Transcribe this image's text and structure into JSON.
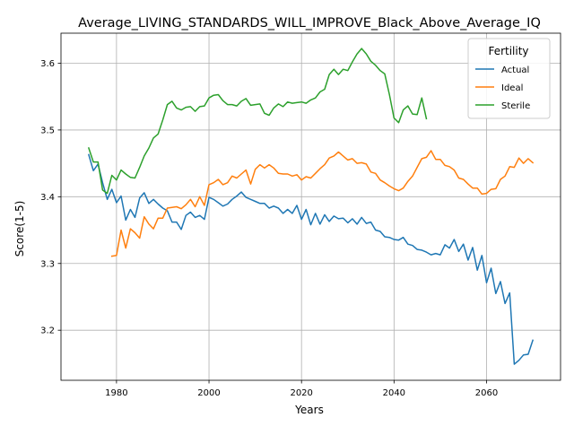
{
  "chart_data": {
    "type": "line",
    "title": "Average_LIVING_STANDARDS_WILL_IMPROVE_Black_Above_Average_IQ",
    "xlabel": "Years",
    "ylabel": "Score(1-5)",
    "xlim": [
      1968,
      2076
    ],
    "ylim": [
      3.125,
      3.645
    ],
    "xticks": [
      1980,
      2000,
      2020,
      2040,
      2060
    ],
    "yticks": [
      3.2,
      3.3,
      3.4,
      3.5,
      3.6
    ],
    "grid": true,
    "legend": {
      "title": "Fertility",
      "placement": "top-right"
    },
    "series": [
      {
        "name": "Actual",
        "color": "#1f77b4",
        "x": [
          1974,
          1975,
          1976,
          1977,
          1978,
          1979,
          1980,
          1981,
          1982,
          1983,
          1984,
          1985,
          1986,
          1987,
          1988,
          1989,
          1990,
          1991,
          1992,
          1993,
          1994,
          1995,
          1996,
          1997,
          1998,
          1999,
          2000,
          2001,
          2002,
          2003,
          2004,
          2005,
          2006,
          2007,
          2008,
          2009,
          2010,
          2011,
          2012,
          2013,
          2014,
          2015,
          2016,
          2017,
          2018,
          2019,
          2020,
          2021,
          2022,
          2023,
          2024,
          2025,
          2026,
          2027,
          2028,
          2029,
          2030,
          2031,
          2032,
          2033,
          2034,
          2035,
          2036,
          2037,
          2038,
          2039,
          2040,
          2041,
          2042,
          2043,
          2044,
          2045,
          2046,
          2047,
          2048,
          2049,
          2050,
          2051,
          2052,
          2053,
          2054,
          2055,
          2056,
          2057,
          2058,
          2059,
          2060,
          2061,
          2062,
          2063,
          2064,
          2065,
          2066,
          2067,
          2068,
          2069,
          2070
        ],
        "values": [
          3.463,
          3.439,
          3.449,
          3.421,
          3.396,
          3.411,
          3.391,
          3.401,
          3.365,
          3.381,
          3.369,
          3.398,
          3.406,
          3.39,
          3.396,
          3.389,
          3.383,
          3.379,
          3.362,
          3.362,
          3.351,
          3.372,
          3.377,
          3.369,
          3.372,
          3.366,
          3.399,
          3.396,
          3.391,
          3.386,
          3.389,
          3.396,
          3.401,
          3.407,
          3.399,
          3.396,
          3.393,
          3.39,
          3.39,
          3.383,
          3.386,
          3.383,
          3.375,
          3.381,
          3.375,
          3.387,
          3.366,
          3.381,
          3.358,
          3.375,
          3.359,
          3.373,
          3.363,
          3.371,
          3.367,
          3.368,
          3.361,
          3.367,
          3.359,
          3.369,
          3.36,
          3.362,
          3.35,
          3.348,
          3.34,
          3.339,
          3.336,
          3.335,
          3.339,
          3.329,
          3.327,
          3.321,
          3.32,
          3.317,
          3.313,
          3.315,
          3.313,
          3.328,
          3.323,
          3.336,
          3.318,
          3.329,
          3.305,
          3.324,
          3.29,
          3.312,
          3.271,
          3.293,
          3.255,
          3.273,
          3.24,
          3.256,
          3.149,
          3.155,
          3.163,
          3.164,
          3.185
        ]
      },
      {
        "name": "Ideal",
        "color": "#ff7f0e",
        "x": [
          1979,
          1980,
          1981,
          1982,
          1983,
          1984,
          1985,
          1986,
          1987,
          1988,
          1989,
          1990,
          1991,
          1992,
          1993,
          1994,
          1995,
          1996,
          1997,
          1998,
          1999,
          2000,
          2001,
          2002,
          2003,
          2004,
          2005,
          2006,
          2007,
          2008,
          2009,
          2010,
          2011,
          2012,
          2013,
          2014,
          2015,
          2016,
          2017,
          2018,
          2019,
          2020,
          2021,
          2022,
          2023,
          2024,
          2025,
          2026,
          2027,
          2028,
          2029,
          2030,
          2031,
          2032,
          2033,
          2034,
          2035,
          2036,
          2037,
          2038,
          2039,
          2040,
          2041,
          2042,
          2043,
          2044,
          2045,
          2046,
          2047,
          2048,
          2049,
          2050,
          2051,
          2052,
          2053,
          2054,
          2055,
          2056,
          2057,
          2058,
          2059,
          2060,
          2061,
          2062,
          2063,
          2064,
          2065,
          2066,
          2067,
          2068,
          2069,
          2070
        ],
        "values": [
          3.311,
          3.312,
          3.35,
          3.323,
          3.352,
          3.346,
          3.338,
          3.37,
          3.359,
          3.352,
          3.368,
          3.368,
          3.383,
          3.384,
          3.385,
          3.382,
          3.388,
          3.396,
          3.385,
          3.4,
          3.387,
          3.418,
          3.421,
          3.426,
          3.418,
          3.421,
          3.431,
          3.428,
          3.434,
          3.44,
          3.419,
          3.441,
          3.448,
          3.443,
          3.448,
          3.443,
          3.435,
          3.434,
          3.434,
          3.431,
          3.433,
          3.425,
          3.43,
          3.428,
          3.435,
          3.442,
          3.448,
          3.458,
          3.461,
          3.467,
          3.461,
          3.455,
          3.457,
          3.45,
          3.451,
          3.449,
          3.437,
          3.435,
          3.425,
          3.421,
          3.416,
          3.412,
          3.409,
          3.413,
          3.423,
          3.431,
          3.444,
          3.457,
          3.459,
          3.469,
          3.456,
          3.456,
          3.447,
          3.445,
          3.44,
          3.428,
          3.426,
          3.419,
          3.413,
          3.413,
          3.404,
          3.405,
          3.411,
          3.412,
          3.426,
          3.431,
          3.445,
          3.444,
          3.458,
          3.45,
          3.457,
          3.451
        ]
      },
      {
        "name": "Sterile",
        "color": "#2ca02c",
        "x": [
          1974,
          1975,
          1976,
          1977,
          1978,
          1979,
          1980,
          1981,
          1982,
          1983,
          1984,
          1985,
          1986,
          1987,
          1988,
          1989,
          1990,
          1991,
          1992,
          1993,
          1994,
          1995,
          1996,
          1997,
          1998,
          1999,
          2000,
          2001,
          2002,
          2003,
          2004,
          2005,
          2006,
          2007,
          2008,
          2009,
          2010,
          2011,
          2012,
          2013,
          2014,
          2015,
          2016,
          2017,
          2018,
          2019,
          2020,
          2021,
          2022,
          2023,
          2024,
          2025,
          2026,
          2027,
          2028,
          2029,
          2030,
          2031,
          2032,
          2033,
          2034,
          2035,
          2036,
          2037,
          2038,
          2039,
          2040,
          2041,
          2042,
          2043,
          2044,
          2045,
          2046,
          2047
        ],
        "values": [
          3.473,
          3.452,
          3.452,
          3.41,
          3.405,
          3.432,
          3.425,
          3.44,
          3.434,
          3.429,
          3.428,
          3.444,
          3.461,
          3.473,
          3.488,
          3.494,
          3.515,
          3.538,
          3.543,
          3.533,
          3.53,
          3.534,
          3.535,
          3.528,
          3.535,
          3.536,
          3.548,
          3.552,
          3.553,
          3.544,
          3.538,
          3.538,
          3.536,
          3.543,
          3.547,
          3.537,
          3.538,
          3.539,
          3.525,
          3.522,
          3.533,
          3.539,
          3.535,
          3.542,
          3.54,
          3.541,
          3.542,
          3.54,
          3.545,
          3.548,
          3.557,
          3.561,
          3.583,
          3.591,
          3.583,
          3.591,
          3.589,
          3.602,
          3.614,
          3.622,
          3.614,
          3.603,
          3.597,
          3.589,
          3.584,
          3.553,
          3.518,
          3.511,
          3.53,
          3.536,
          3.524,
          3.523,
          3.548,
          3.517
        ]
      }
    ]
  }
}
